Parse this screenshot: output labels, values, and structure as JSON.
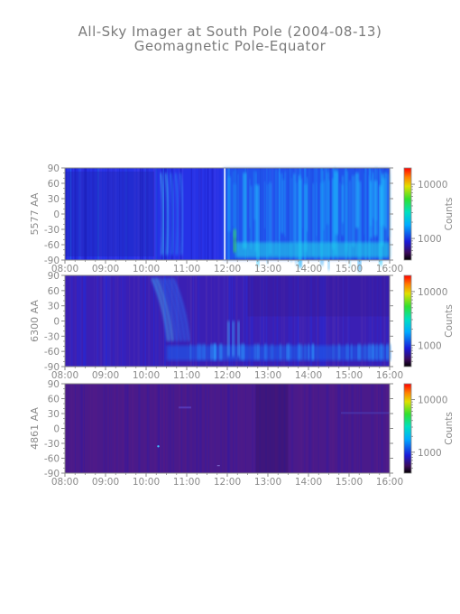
{
  "title": "All-Sky Imager at South Pole (2004-08-13)",
  "subtitle": "Geomagnetic Pole-Equator",
  "chart_data": [
    {
      "type": "heatmap",
      "ylabel": "5577 AA",
      "x_ticks": [
        "08:00",
        "09:00",
        "10:00",
        "11:00",
        "12:00",
        "13:00",
        "14:00",
        "15:00",
        "16:00"
      ],
      "y_ticks": [
        90,
        60,
        30,
        0,
        -30,
        -60,
        -90
      ],
      "xlim": [
        "08:00",
        "16:00"
      ],
      "ylim": [
        -90,
        90
      ],
      "colorbar": {
        "label": "Counts",
        "ticks": [
          10000,
          1000
        ],
        "tick_labels": [
          "10000",
          "1000"
        ],
        "scale": "log"
      },
      "dominant_color": "#2632e6"
    },
    {
      "type": "heatmap",
      "ylabel": "6300 AA",
      "x_ticks": [
        "08:00",
        "09:00",
        "10:00",
        "11:00",
        "12:00",
        "13:00",
        "14:00",
        "15:00",
        "16:00"
      ],
      "y_ticks": [
        90,
        60,
        30,
        0,
        -30,
        -60,
        -90
      ],
      "xlim": [
        "08:00",
        "16:00"
      ],
      "ylim": [
        -90,
        90
      ],
      "colorbar": {
        "label": "Counts",
        "ticks": [
          10000,
          1000
        ],
        "tick_labels": [
          "10000",
          "1000"
        ],
        "scale": "log"
      },
      "dominant_color": "#3a1fb4"
    },
    {
      "type": "heatmap",
      "ylabel": "4861 AA",
      "x_ticks": [
        "08:00",
        "09:00",
        "10:00",
        "11:00",
        "12:00",
        "13:00",
        "14:00",
        "15:00",
        "16:00"
      ],
      "y_ticks": [
        90,
        60,
        30,
        0,
        -30,
        -60,
        -90
      ],
      "xlim": [
        "08:00",
        "16:00"
      ],
      "ylim": [
        -90,
        90
      ],
      "colorbar": {
        "label": "Counts",
        "ticks": [
          10000,
          1000
        ],
        "tick_labels": [
          "10000",
          "1000"
        ],
        "scale": "log"
      },
      "dominant_color": "#4a1a8a"
    }
  ]
}
